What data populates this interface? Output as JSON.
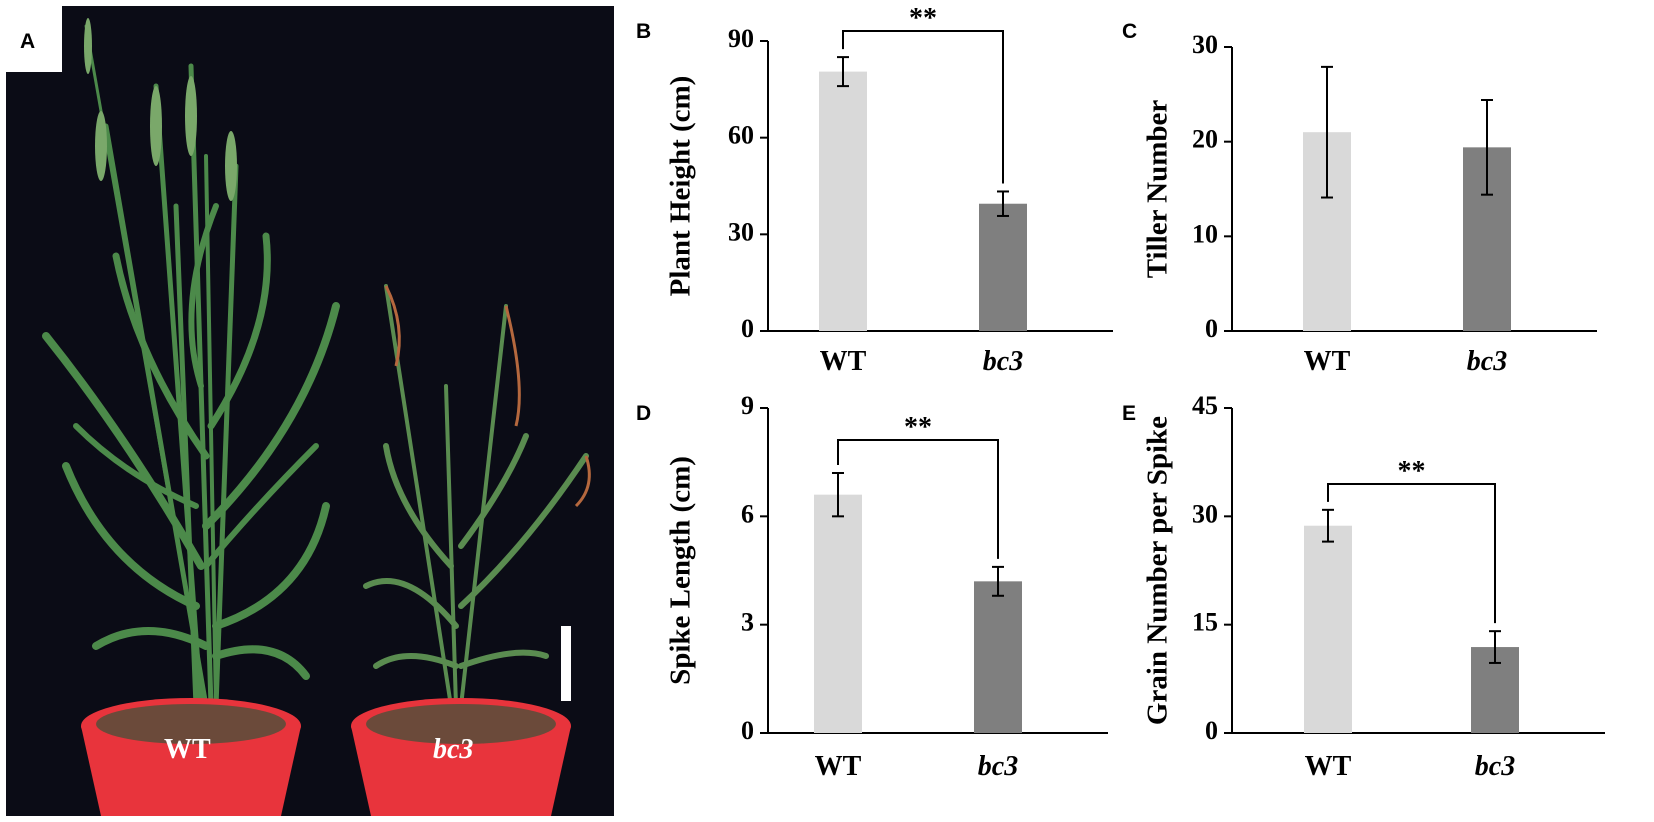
{
  "photo": {
    "panel_letter": "A",
    "labels": [
      "WT",
      "bc3"
    ]
  },
  "colors": {
    "wt_bar": "#d9d9d9",
    "bc3_bar": "#7f7f7f",
    "photo_background": "#0b0c16",
    "leaf": "#4c8a4a",
    "pot": "#e8343c"
  },
  "chart_data": [
    {
      "panel": "B",
      "type": "bar",
      "ylabel": "Plant Height (cm)",
      "categories": [
        "WT",
        "bc3"
      ],
      "values": [
        80.5,
        39.5
      ],
      "errors": [
        4.5,
        3.8
      ],
      "ylim": [
        0,
        90
      ],
      "yticks": [
        0,
        30,
        60,
        90
      ],
      "significance": "**"
    },
    {
      "panel": "C",
      "type": "bar",
      "ylabel": "Tiller Number",
      "categories": [
        "WT",
        "bc3"
      ],
      "values": [
        21.0,
        19.4
      ],
      "errors": [
        6.9,
        5.0
      ],
      "ylim": [
        0,
        30
      ],
      "yticks": [
        0,
        10,
        20,
        30
      ],
      "significance": ""
    },
    {
      "panel": "D",
      "type": "bar",
      "ylabel": "Spike Length (cm)",
      "categories": [
        "WT",
        "bc3"
      ],
      "values": [
        6.6,
        4.2
      ],
      "errors": [
        0.6,
        0.4
      ],
      "ylim": [
        0,
        9
      ],
      "yticks": [
        0,
        3,
        6,
        9
      ],
      "significance": "**"
    },
    {
      "panel": "E",
      "type": "bar",
      "ylabel": "Grain Number per Spike",
      "categories": [
        "WT",
        "bc3"
      ],
      "values": [
        28.7,
        11.9
      ],
      "errors": [
        2.2,
        2.2
      ],
      "ylim": [
        0,
        45
      ],
      "yticks": [
        0,
        15,
        30,
        45
      ],
      "significance": "**"
    }
  ]
}
